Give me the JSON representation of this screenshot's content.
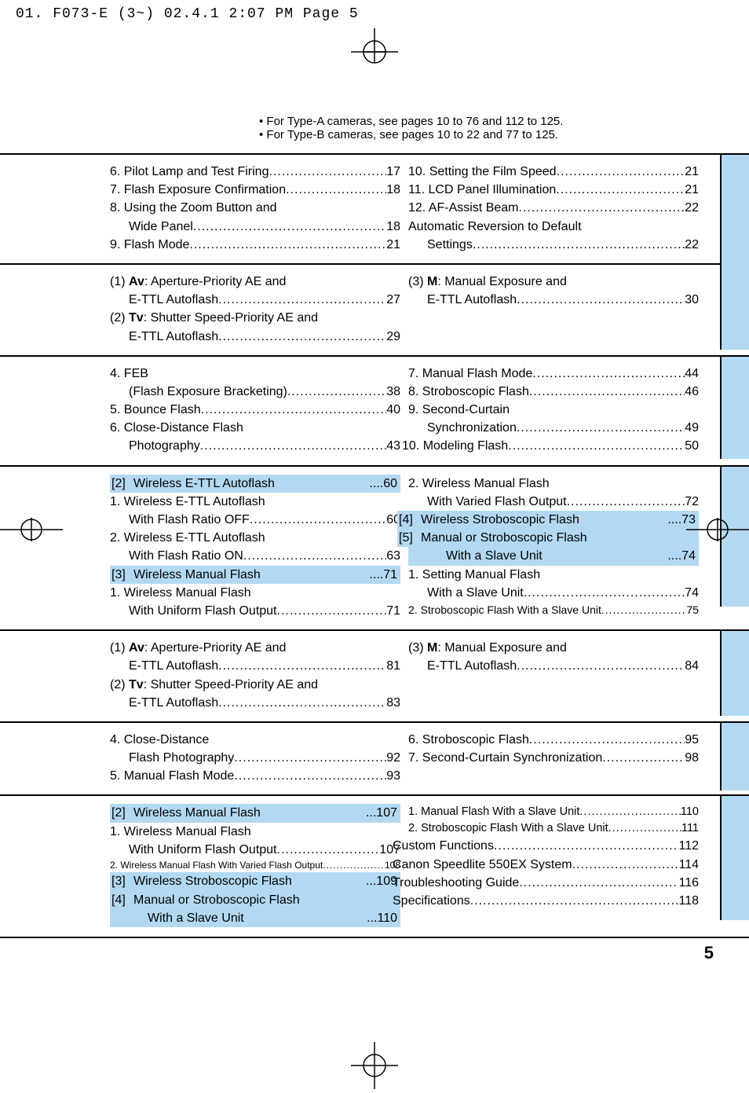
{
  "header": "01. F073-E (3~)  02.4.1 2:07 PM  Page 5",
  "notes": [
    "For Type-A cameras, see pages 10 to 76 and 112  to 125.",
    "For Type-B cameras, see pages 10 to 22 and 77  to 125."
  ],
  "sections": [
    {
      "blueTab": true,
      "tabHeight": 140,
      "left": [
        {
          "t": "6. Pilot Lamp and Test Firing",
          "p": "17"
        },
        {
          "t": "7. Flash Exposure Confirmation",
          "p": "18"
        },
        {
          "t": "8. Using the Zoom Button and",
          "nowrap": true
        },
        {
          "t": "Wide Panel",
          "p": "18",
          "indent": 1
        },
        {
          "t": "9. Flash Mode",
          "p": "21"
        }
      ],
      "right": [
        {
          "t": "10. Setting the Film Speed",
          "p": "21"
        },
        {
          "t": "11. LCD Panel Illumination",
          "p": "21"
        },
        {
          "t": "12. AF-Assist Beam",
          "p": "22"
        },
        {
          "t": "Automatic Reversion to Default",
          "nowrap": true
        },
        {
          "t": "Settings",
          "p": "22",
          "indent": 1
        }
      ]
    },
    {
      "blueTab": true,
      "tabHeight": 108,
      "left": [
        {
          "pre": "(1) ",
          "bold": "Av",
          "t": ": Aperture-Priority AE and",
          "nowrap": true
        },
        {
          "t": "E-TTL Autoflash",
          "p": "27",
          "indent": 1
        },
        {
          "pre": "(2) ",
          "bold": "Tv",
          "t": ": Shutter Speed-Priority AE and",
          "nowrap": true
        },
        {
          "t": "E-TTL Autoflash",
          "p": "29",
          "indent": 1
        }
      ],
      "right": [
        {
          "pre": "(3) ",
          "bold": "M",
          "t": ": Manual Exposure and",
          "nowrap": true
        },
        {
          "t": "E-TTL Autoflash",
          "p": "30",
          "indent": 1
        }
      ]
    },
    {
      "blueTab": true,
      "tabHeight": 130,
      "left": [
        {
          "t": "4. FEB",
          "nowrap": true
        },
        {
          "t": "(Flash Exposure Bracketing)",
          "p": "38",
          "indent": 1
        },
        {
          "t": "5. Bounce Flash",
          "p": "40"
        },
        {
          "t": "6. Close-Distance Flash",
          "nowrap": true
        },
        {
          "t": "Photography",
          "p": "43",
          "indent": 1
        }
      ],
      "right": [
        {
          "t": "7. Manual Flash Mode",
          "p": "44"
        },
        {
          "t": "8. Stroboscopic Flash",
          "p": "46"
        },
        {
          "t": "9. Second-Curtain",
          "nowrap": true
        },
        {
          "t": "Synchronization",
          "p": "49",
          "indent": 1
        },
        {
          "t": "10. Modeling Flash",
          "p": "50",
          "shift": true
        }
      ]
    },
    {
      "blueTab": true,
      "tabHeight": 178,
      "midCrop": true,
      "left": [
        {
          "hl": true,
          "bracket": "[2]",
          "t": "Wireless E-TTL Autoflash",
          "p": "....60"
        },
        {
          "t": "1. Wireless E-TTL Autoflash",
          "nowrap": true,
          "indent": 0
        },
        {
          "t": "With Flash Ratio OFF",
          "p": "60",
          "indent": 1
        },
        {
          "t": "2. Wireless E-TTL Autoflash",
          "nowrap": true,
          "indent": 0
        },
        {
          "t": "With Flash Ratio ON",
          "p": "63",
          "indent": 1
        },
        {
          "hl": true,
          "bracket": "[3]",
          "t": "Wireless Manual Flash",
          "p": "....71"
        },
        {
          "t": "1. Wireless Manual Flash",
          "nowrap": true,
          "indent": 0
        },
        {
          "t": "With Uniform Flash Output",
          "p": "71",
          "indent": 1
        }
      ],
      "right": [
        {
          "t": "2. Wireless Manual Flash",
          "nowrap": true,
          "indent": 0
        },
        {
          "t": "With Varied Flash Output",
          "p": "72",
          "indent": 1
        },
        {
          "hl": true,
          "bracket": "[4]",
          "t": "Wireless Stroboscopic Flash",
          "p": "....73",
          "shiftBracket": true
        },
        {
          "hl": true,
          "bracket": "[5]",
          "t": "Manual or Stroboscopic Flash",
          "nowrap": true,
          "shiftBracket": true
        },
        {
          "hl": true,
          "t": "With a Slave Unit",
          "p": "....74",
          "indent": 1,
          "noBracket": true
        },
        {
          "t": "1. Setting Manual Flash",
          "nowrap": true,
          "indent": 0
        },
        {
          "t": "With a Slave Unit",
          "p": "74",
          "indent": 1
        },
        {
          "t": "2. Stroboscopic Flash With a Slave Unit",
          "p": "75",
          "indent": 0,
          "small": true
        }
      ]
    },
    {
      "blueTab": true,
      "tabHeight": 108,
      "left": [
        {
          "pre": "(1) ",
          "bold": "Av",
          "t": ": Aperture-Priority AE and",
          "nowrap": true
        },
        {
          "t": "E-TTL Autoflash",
          "p": "81",
          "indent": 1
        },
        {
          "pre": "(2) ",
          "bold": "Tv",
          "t": ": Shutter Speed-Priority AE and",
          "nowrap": true
        },
        {
          "t": "E-TTL Autoflash",
          "p": "83",
          "indent": 1
        }
      ],
      "right": [
        {
          "pre": "(3) ",
          "bold": "M",
          "t": ": Manual Exposure and",
          "nowrap": true
        },
        {
          "t": "E-TTL Autoflash",
          "p": "84",
          "indent": 1
        }
      ]
    },
    {
      "blueTab": true,
      "tabHeight": 86,
      "left": [
        {
          "t": "4. Close-Distance",
          "nowrap": true
        },
        {
          "t": "Flash Photography",
          "p": "92",
          "indent": 1
        },
        {
          "t": "5. Manual Flash Mode",
          "p": "93"
        }
      ],
      "right": [
        {
          "t": "6. Stroboscopic Flash",
          "p": "95"
        },
        {
          "t": "7. Second-Curtain Synchronization",
          "p": "98"
        }
      ]
    },
    {
      "blueTab": true,
      "tabHeight": 158,
      "left": [
        {
          "hl": true,
          "bracket": "[2]",
          "t": "Wireless Manual Flash",
          "p": "...107"
        },
        {
          "t": "1. Wireless Manual Flash",
          "nowrap": true,
          "indent": 0
        },
        {
          "t": "With Uniform Flash Output",
          "p": "107",
          "indent": 1
        },
        {
          "t": "2. Wireless Manual Flash With Varied Flash Output",
          "p": "108",
          "indent": 0,
          "tiny": true
        },
        {
          "hl": true,
          "bracket": "[3]",
          "t": "Wireless Stroboscopic Flash",
          "p": "...109"
        },
        {
          "hl": true,
          "bracket": "[4]",
          "t": "Manual or Stroboscopic Flash",
          "nowrap": true
        },
        {
          "hl": true,
          "t": "With a Slave Unit",
          "p": "...110",
          "indent": 1,
          "noBracket": true
        }
      ],
      "right": [
        {
          "t": "1. Manual Flash With a Slave Unit",
          "p": "110",
          "indent": 0,
          "small2": true
        },
        {
          "t": "2. Stroboscopic Flash With a Slave Unit",
          "p": "111",
          "indent": 0,
          "small2": true
        },
        {
          "t": "Custom Functions",
          "p": "112",
          "shiftL": true
        },
        {
          "t": "Canon Speedlite 550EX System",
          "p": "114",
          "shiftL": true
        },
        {
          "t": "Troubleshooting Guide",
          "p": "116",
          "shiftL": true
        },
        {
          "t": "Specifications",
          "p": "118",
          "shiftL": true
        }
      ]
    }
  ],
  "pageNum": "5"
}
